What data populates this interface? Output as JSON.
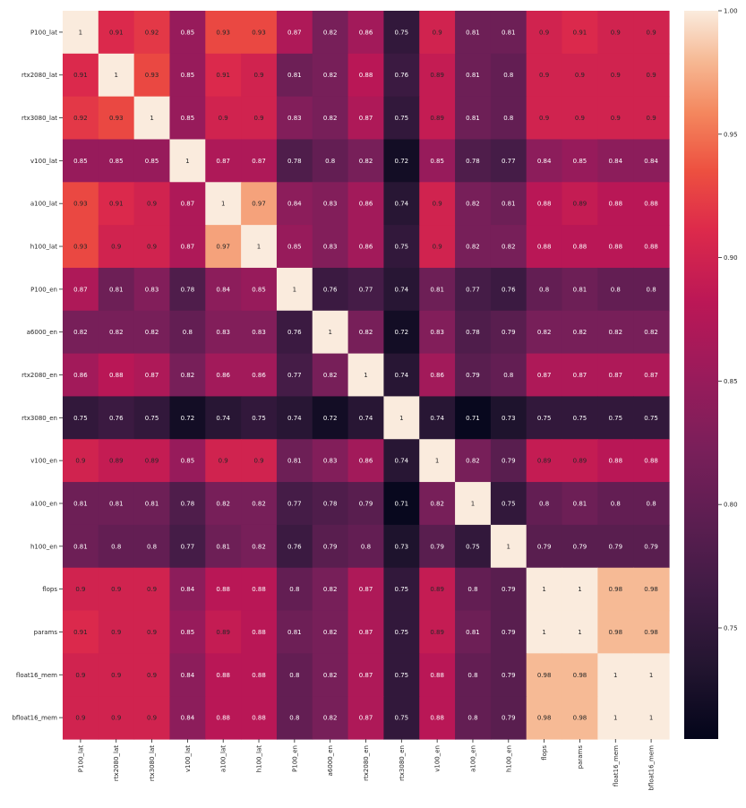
{
  "chart_data": {
    "type": "heatmap",
    "title": "",
    "xlabel": "",
    "ylabel": "",
    "labels": [
      "P100_lat",
      "rtx2080_lat",
      "rtx3080_lat",
      "v100_lat",
      "a100_lat",
      "h100_lat",
      "P100_en",
      "a6000_en",
      "rtx2080_en",
      "rtx3080_en",
      "v100_en",
      "a100_en",
      "h100_en",
      "flops",
      "params",
      "float16_mem",
      "bfloat16_mem"
    ],
    "values": [
      [
        "1",
        "0.91",
        "0.92",
        "0.85",
        "0.93",
        "0.93",
        "0.87",
        "0.82",
        "0.86",
        "0.75",
        "0.9",
        "0.81",
        "0.81",
        "0.9",
        "0.91",
        "0.9",
        "0.9"
      ],
      [
        "0.91",
        "1",
        "0.93",
        "0.85",
        "0.91",
        "0.9",
        "0.81",
        "0.82",
        "0.88",
        "0.76",
        "0.89",
        "0.81",
        "0.8",
        "0.9",
        "0.9",
        "0.9",
        "0.9"
      ],
      [
        "0.92",
        "0.93",
        "1",
        "0.85",
        "0.9",
        "0.9",
        "0.83",
        "0.82",
        "0.87",
        "0.75",
        "0.89",
        "0.81",
        "0.8",
        "0.9",
        "0.9",
        "0.9",
        "0.9"
      ],
      [
        "0.85",
        "0.85",
        "0.85",
        "1",
        "0.87",
        "0.87",
        "0.78",
        "0.8",
        "0.82",
        "0.72",
        "0.85",
        "0.78",
        "0.77",
        "0.84",
        "0.85",
        "0.84",
        "0.84"
      ],
      [
        "0.93",
        "0.91",
        "0.9",
        "0.87",
        "1",
        "0.97",
        "0.84",
        "0.83",
        "0.86",
        "0.74",
        "0.9",
        "0.82",
        "0.81",
        "0.88",
        "0.89",
        "0.88",
        "0.88"
      ],
      [
        "0.93",
        "0.9",
        "0.9",
        "0.87",
        "0.97",
        "1",
        "0.85",
        "0.83",
        "0.86",
        "0.75",
        "0.9",
        "0.82",
        "0.82",
        "0.88",
        "0.88",
        "0.88",
        "0.88"
      ],
      [
        "0.87",
        "0.81",
        "0.83",
        "0.78",
        "0.84",
        "0.85",
        "1",
        "0.76",
        "0.77",
        "0.74",
        "0.81",
        "0.77",
        "0.76",
        "0.8",
        "0.81",
        "0.8",
        "0.8"
      ],
      [
        "0.82",
        "0.82",
        "0.82",
        "0.8",
        "0.83",
        "0.83",
        "0.76",
        "1",
        "0.82",
        "0.72",
        "0.83",
        "0.78",
        "0.79",
        "0.82",
        "0.82",
        "0.82",
        "0.82"
      ],
      [
        "0.86",
        "0.88",
        "0.87",
        "0.82",
        "0.86",
        "0.86",
        "0.77",
        "0.82",
        "1",
        "0.74",
        "0.86",
        "0.79",
        "0.8",
        "0.87",
        "0.87",
        "0.87",
        "0.87"
      ],
      [
        "0.75",
        "0.76",
        "0.75",
        "0.72",
        "0.74",
        "0.75",
        "0.74",
        "0.72",
        "0.74",
        "1",
        "0.74",
        "0.71",
        "0.73",
        "0.75",
        "0.75",
        "0.75",
        "0.75"
      ],
      [
        "0.9",
        "0.89",
        "0.89",
        "0.85",
        "0.9",
        "0.9",
        "0.81",
        "0.83",
        "0.86",
        "0.74",
        "1",
        "0.82",
        "0.79",
        "0.89",
        "0.89",
        "0.88",
        "0.88"
      ],
      [
        "0.81",
        "0.81",
        "0.81",
        "0.78",
        "0.82",
        "0.82",
        "0.77",
        "0.78",
        "0.79",
        "0.71",
        "0.82",
        "1",
        "0.75",
        "0.8",
        "0.81",
        "0.8",
        "0.8"
      ],
      [
        "0.81",
        "0.8",
        "0.8",
        "0.77",
        "0.81",
        "0.82",
        "0.76",
        "0.79",
        "0.8",
        "0.73",
        "0.79",
        "0.75",
        "1",
        "0.79",
        "0.79",
        "0.79",
        "0.79"
      ],
      [
        "0.9",
        "0.9",
        "0.9",
        "0.84",
        "0.88",
        "0.88",
        "0.8",
        "0.82",
        "0.87",
        "0.75",
        "0.89",
        "0.8",
        "0.79",
        "1",
        "1",
        "0.98",
        "0.98"
      ],
      [
        "0.91",
        "0.9",
        "0.9",
        "0.85",
        "0.89",
        "0.88",
        "0.81",
        "0.82",
        "0.87",
        "0.75",
        "0.89",
        "0.81",
        "0.79",
        "1",
        "1",
        "0.98",
        "0.98"
      ],
      [
        "0.9",
        "0.9",
        "0.9",
        "0.84",
        "0.88",
        "0.88",
        "0.8",
        "0.82",
        "0.87",
        "0.75",
        "0.88",
        "0.8",
        "0.79",
        "0.98",
        "0.98",
        "1",
        "1"
      ],
      [
        "0.9",
        "0.9",
        "0.9",
        "0.84",
        "0.88",
        "0.88",
        "0.8",
        "0.82",
        "0.87",
        "0.75",
        "0.88",
        "0.8",
        "0.79",
        "0.98",
        "0.98",
        "1",
        "1"
      ]
    ],
    "colorbar": {
      "range": [
        0.705,
        1.0
      ],
      "ticks": [
        "1.00",
        "0.95",
        "0.90",
        "0.85",
        "0.80",
        "0.75"
      ],
      "colormap": "rocket"
    },
    "grid": false,
    "legend": "none"
  }
}
